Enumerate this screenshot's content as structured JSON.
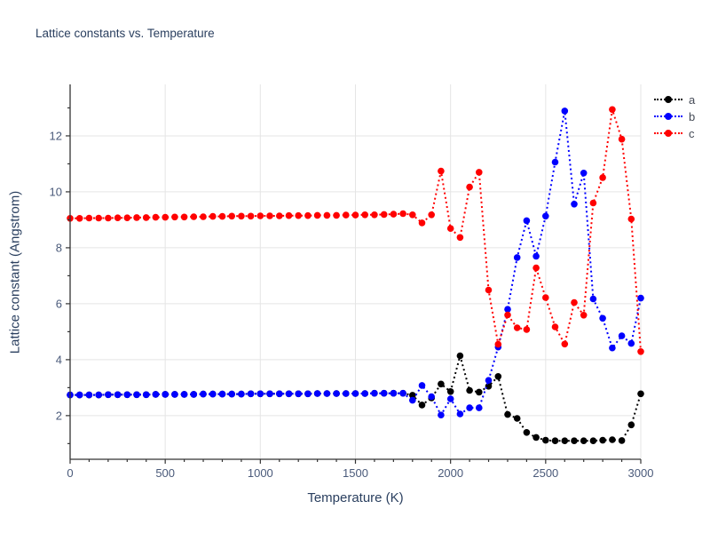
{
  "chart_data": {
    "type": "line",
    "title": "Lattice constants vs. Temperature",
    "xlabel": "Temperature (K)",
    "ylabel": "Lattice constant (Angstrom)",
    "xlim": [
      0,
      3000
    ],
    "ylim": [
      0.44,
      13.84
    ],
    "x_ticks": [
      0,
      500,
      1000,
      1500,
      2000,
      2500,
      3000
    ],
    "x_minor_step": 100,
    "y_ticks": [
      2,
      4,
      6,
      8,
      10,
      12
    ],
    "y_minor_ticks": [
      1,
      3,
      5,
      7,
      9,
      11,
      13
    ],
    "grid": true,
    "legend_position": "top-right",
    "line_style": "dotted-with-markers",
    "colors": {
      "grid": "#e5e5e5",
      "axis": "#333333",
      "tick_label": "#4a5a7a",
      "text": "#2a3f5f"
    },
    "x": [
      0,
      50,
      100,
      150,
      200,
      250,
      300,
      350,
      400,
      450,
      500,
      550,
      600,
      650,
      700,
      750,
      800,
      850,
      900,
      950,
      1000,
      1050,
      1100,
      1150,
      1200,
      1250,
      1300,
      1350,
      1400,
      1450,
      1500,
      1550,
      1600,
      1650,
      1700,
      1750,
      1800,
      1850,
      1900,
      1950,
      2000,
      2050,
      2100,
      2150,
      2200,
      2250,
      2300,
      2350,
      2400,
      2450,
      2500,
      2550,
      2600,
      2650,
      2700,
      2750,
      2800,
      2850,
      2900,
      2950,
      3000
    ],
    "series": [
      {
        "name": "a",
        "color": "#000000",
        "values": [
          2.74,
          2.74,
          2.74,
          2.74,
          2.75,
          2.75,
          2.75,
          2.75,
          2.75,
          2.76,
          2.76,
          2.76,
          2.76,
          2.76,
          2.77,
          2.77,
          2.77,
          2.77,
          2.77,
          2.78,
          2.78,
          2.78,
          2.78,
          2.78,
          2.78,
          2.78,
          2.79,
          2.79,
          2.79,
          2.79,
          2.79,
          2.79,
          2.8,
          2.8,
          2.8,
          2.8,
          2.73,
          2.38,
          2.63,
          3.13,
          2.86,
          4.14,
          2.9,
          2.84,
          3.05,
          3.4,
          2.04,
          1.9,
          1.4,
          1.22,
          1.12,
          1.1,
          1.1,
          1.1,
          1.1,
          1.1,
          1.12,
          1.14,
          1.11,
          1.67,
          2.78
        ]
      },
      {
        "name": "b",
        "color": "#0000ff",
        "values": [
          2.74,
          2.74,
          2.74,
          2.74,
          2.75,
          2.75,
          2.75,
          2.75,
          2.75,
          2.76,
          2.76,
          2.76,
          2.76,
          2.76,
          2.77,
          2.77,
          2.77,
          2.77,
          2.77,
          2.78,
          2.78,
          2.78,
          2.78,
          2.78,
          2.78,
          2.78,
          2.79,
          2.79,
          2.79,
          2.79,
          2.79,
          2.79,
          2.8,
          2.8,
          2.8,
          2.8,
          2.55,
          3.08,
          2.68,
          2.02,
          2.6,
          2.06,
          2.28,
          2.28,
          3.26,
          4.45,
          5.8,
          7.65,
          8.97,
          7.7,
          9.13,
          11.06,
          12.89,
          9.56,
          10.67,
          6.17,
          5.48,
          4.42,
          4.85,
          4.58,
          6.2
        ]
      },
      {
        "name": "c",
        "color": "#ff0000",
        "values": [
          9.05,
          9.05,
          9.06,
          9.06,
          9.06,
          9.07,
          9.07,
          9.08,
          9.08,
          9.09,
          9.09,
          9.1,
          9.1,
          9.11,
          9.11,
          9.12,
          9.12,
          9.13,
          9.13,
          9.13,
          9.14,
          9.14,
          9.14,
          9.15,
          9.15,
          9.15,
          9.16,
          9.16,
          9.16,
          9.17,
          9.17,
          9.18,
          9.18,
          9.19,
          9.2,
          9.22,
          9.18,
          8.89,
          9.18,
          10.74,
          8.69,
          8.37,
          10.17,
          10.7,
          6.49,
          4.55,
          5.6,
          5.14,
          5.08,
          7.28,
          6.22,
          5.17,
          4.56,
          6.04,
          5.59,
          9.6,
          10.51,
          12.94,
          11.88,
          9.03,
          4.29
        ]
      }
    ]
  }
}
